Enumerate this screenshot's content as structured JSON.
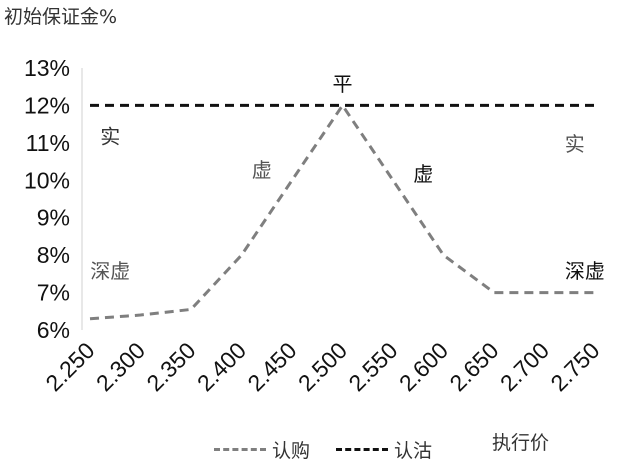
{
  "chart_data": {
    "type": "line",
    "ylabel": "初始保证金%",
    "xlabel": "执行价",
    "categories": [
      "2.250",
      "2.300",
      "2.350",
      "2.400",
      "2.450",
      "2.500",
      "2.550",
      "2.600",
      "2.650",
      "2.700",
      "2.750"
    ],
    "y_ticks": [
      "6%",
      "7%",
      "8%",
      "9%",
      "10%",
      "11%",
      "12%",
      "13%"
    ],
    "ylim": [
      6,
      13
    ],
    "grid": false,
    "legend_position": "bottom",
    "series": [
      {
        "name": "认购",
        "color": "#7f7f7f",
        "values": [
          6.3,
          6.4,
          6.55,
          8.0,
          10.0,
          12.0,
          10.0,
          8.0,
          7.0,
          7.0,
          7.0
        ]
      },
      {
        "name": "认沽",
        "color": "#111111",
        "values": [
          12.0,
          12.0,
          12.0,
          12.0,
          12.0,
          12.0,
          12.0,
          12.0,
          12.0,
          12.0,
          12.0
        ]
      }
    ],
    "annotations": [
      {
        "text": "平",
        "x": "2.500",
        "y": 12.6,
        "color": "#111111"
      },
      {
        "text": "实",
        "x": "2.270",
        "y": 11.2,
        "color": "#333333"
      },
      {
        "text": "实",
        "x": "2.730",
        "y": 11.0,
        "color": "#555555"
      },
      {
        "text": "虚",
        "x": "2.420",
        "y": 10.3,
        "color": "#555555"
      },
      {
        "text": "虚",
        "x": "2.580",
        "y": 10.2,
        "color": "#111111"
      },
      {
        "text": "深虚",
        "x": "2.270",
        "y": 7.6,
        "color": "#555555"
      },
      {
        "text": "深虚",
        "x": "2.740",
        "y": 7.6,
        "color": "#111111"
      }
    ]
  }
}
